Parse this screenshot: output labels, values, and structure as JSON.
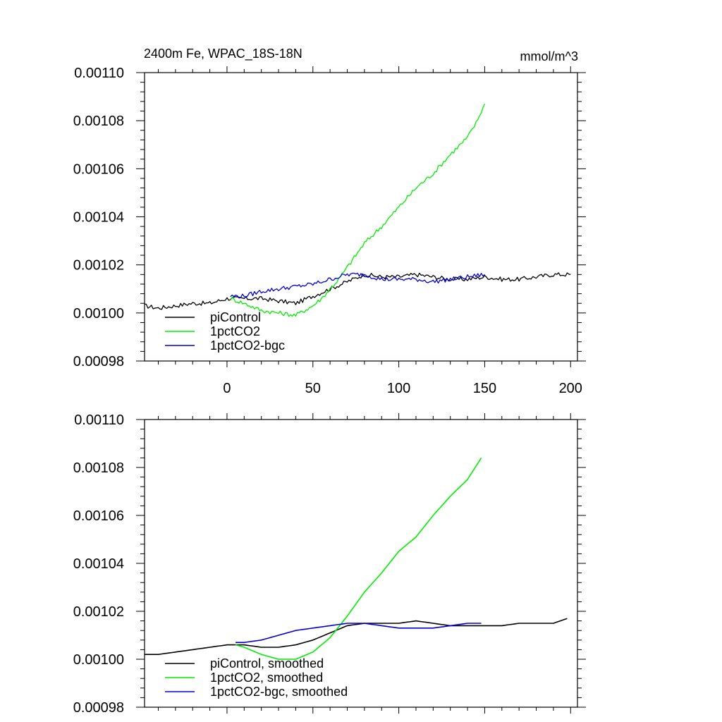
{
  "chart_data": [
    {
      "type": "line",
      "title_left": "2400m Fe, WPAC_18S-18N",
      "title_right": "mmol/m^3",
      "xlim": [
        -48,
        204
      ],
      "ylim": [
        0.00098,
        0.0011
      ],
      "xticks": [
        0,
        50,
        100,
        150,
        200
      ],
      "xtick_labels": [
        "0",
        "50",
        "100",
        "150",
        "200"
      ],
      "yticks": [
        0.00098,
        0.001,
        0.00102,
        0.00104,
        0.00106,
        0.00108,
        0.0011
      ],
      "ytick_labels": [
        "0.00098",
        "0.00100",
        "0.00102",
        "0.00104",
        "0.00106",
        "0.00108",
        "0.00110"
      ],
      "legend_position": "bottom-left",
      "series": [
        {
          "name": "piControl",
          "color": "#000000",
          "x": [
            -48,
            -40,
            -30,
            -20,
            -10,
            0,
            10,
            20,
            30,
            40,
            50,
            60,
            70,
            80,
            90,
            100,
            110,
            120,
            130,
            140,
            150,
            160,
            170,
            180,
            190,
            200
          ],
          "y": [
            0.001003,
            0.001002,
            0.001003,
            0.001004,
            0.001004,
            0.001006,
            0.001006,
            0.001006,
            0.001005,
            0.001004,
            0.001007,
            0.00101,
            0.001013,
            0.001016,
            0.001015,
            0.001015,
            0.001016,
            0.001015,
            0.001014,
            0.001014,
            0.001015,
            0.001014,
            0.001014,
            0.001015,
            0.001016,
            0.001016
          ]
        },
        {
          "name": "1pctCO2",
          "color": "#00ee00",
          "x": [
            2,
            10,
            20,
            30,
            40,
            50,
            55,
            60,
            65,
            70,
            75,
            80,
            90,
            100,
            110,
            120,
            130,
            140,
            145,
            150
          ],
          "y": [
            0.001006,
            0.001004,
            0.001001,
            0.001,
            0.000999,
            0.001003,
            0.001006,
            0.00101,
            0.001014,
            0.001019,
            0.001024,
            0.001029,
            0.001036,
            0.001044,
            0.001052,
            0.001058,
            0.001066,
            0.001073,
            0.001079,
            0.001087
          ]
        },
        {
          "name": "1pctCO2-bgc",
          "color": "#0000dd",
          "x": [
            2,
            10,
            20,
            30,
            40,
            50,
            60,
            70,
            80,
            90,
            100,
            110,
            120,
            130,
            140,
            150
          ],
          "y": [
            0.001007,
            0.001007,
            0.001009,
            0.00101,
            0.001011,
            0.001012,
            0.001014,
            0.001016,
            0.001016,
            0.001014,
            0.001014,
            0.001014,
            0.001013,
            0.001014,
            0.001015,
            0.001016
          ]
        }
      ]
    },
    {
      "type": "line",
      "xlim": [
        -48,
        204
      ],
      "ylim": [
        0.00098,
        0.0011
      ],
      "xticks": [
        0,
        50,
        100,
        150,
        200
      ],
      "yticks": [
        0.00098,
        0.001,
        0.00102,
        0.00104,
        0.00106,
        0.00108,
        0.0011
      ],
      "ytick_labels": [
        "0.00098",
        "0.00100",
        "0.00102",
        "0.00104",
        "0.00106",
        "0.00108",
        "0.00110"
      ],
      "legend_position": "bottom-left",
      "series": [
        {
          "name": "piControl, smoothed",
          "color": "#000000",
          "x": [
            -48,
            -40,
            -30,
            -20,
            -10,
            0,
            10,
            20,
            30,
            40,
            50,
            60,
            70,
            80,
            90,
            100,
            110,
            120,
            130,
            140,
            150,
            160,
            170,
            180,
            190,
            198
          ],
          "y": [
            0.001002,
            0.001002,
            0.001003,
            0.001004,
            0.001005,
            0.001006,
            0.001006,
            0.001005,
            0.001005,
            0.001006,
            0.001008,
            0.001011,
            0.001014,
            0.001015,
            0.001015,
            0.001015,
            0.001016,
            0.001015,
            0.001014,
            0.001014,
            0.001014,
            0.001014,
            0.001015,
            0.001015,
            0.001015,
            0.001017
          ]
        },
        {
          "name": "1pctCO2, smoothed",
          "color": "#00ee00",
          "x": [
            5,
            10,
            20,
            30,
            40,
            50,
            60,
            70,
            80,
            90,
            100,
            110,
            120,
            130,
            140,
            148
          ],
          "y": [
            0.001006,
            0.001005,
            0.001002,
            0.001,
            0.001,
            0.001003,
            0.001009,
            0.001018,
            0.001028,
            0.001036,
            0.001045,
            0.001051,
            0.00106,
            0.001068,
            0.001075,
            0.001084
          ]
        },
        {
          "name": "1pctCO2-bgc, smoothed",
          "color": "#0000dd",
          "x": [
            5,
            10,
            20,
            30,
            40,
            50,
            60,
            70,
            80,
            90,
            100,
            110,
            120,
            130,
            140,
            148
          ],
          "y": [
            0.001007,
            0.001007,
            0.001008,
            0.00101,
            0.001012,
            0.001013,
            0.001014,
            0.001015,
            0.001015,
            0.001014,
            0.001013,
            0.001013,
            0.001013,
            0.001014,
            0.001015,
            0.001015
          ]
        }
      ]
    }
  ]
}
